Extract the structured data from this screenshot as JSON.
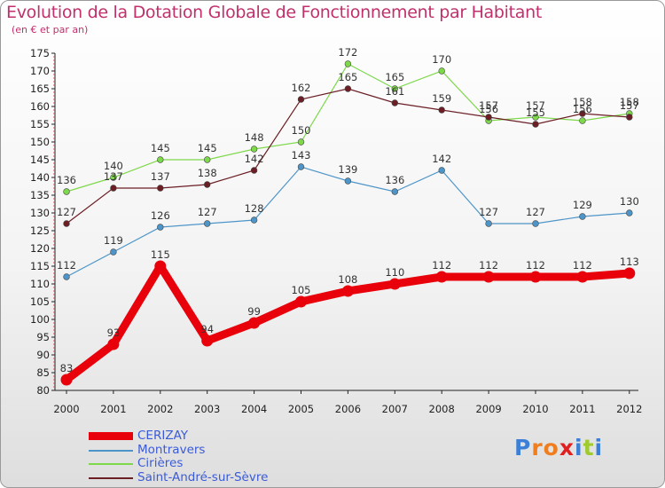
{
  "title": "Evolution de la Dotation Globale de Fonctionnement par Habitant",
  "subtitle": "(en € et par an)",
  "brand": {
    "letters": [
      "P",
      "r",
      "o",
      "x",
      "i",
      "t",
      "i"
    ],
    "colors": [
      "#3b7fd8",
      "#f07d1e",
      "#f07d1e",
      "#e02020",
      "#3b7fd8",
      "#9fcb2c",
      "#3b7fd8"
    ]
  },
  "chart_data": {
    "type": "line",
    "title": "Evolution de la Dotation Globale de Fonctionnement par Habitant",
    "ylabel": "(en € et par an)",
    "xlabel": "",
    "ylim": [
      80,
      175
    ],
    "yticks": [
      80,
      85,
      90,
      95,
      100,
      105,
      110,
      115,
      120,
      125,
      130,
      135,
      140,
      145,
      150,
      155,
      160,
      165,
      170,
      175
    ],
    "categories": [
      "2000",
      "2001",
      "2002",
      "2003",
      "2004",
      "2005",
      "2006",
      "2007",
      "2008",
      "2009",
      "2010",
      "2011",
      "2012"
    ],
    "series": [
      {
        "name": "CERIZAY",
        "color": "#e8000b",
        "highlight": true,
        "values": [
          83,
          93,
          115,
          94,
          99,
          105,
          108,
          110,
          112,
          112,
          112,
          112,
          113
        ]
      },
      {
        "name": "Montravers",
        "color": "#4d95c8",
        "values": [
          112,
          119,
          126,
          127,
          128,
          143,
          139,
          136,
          142,
          127,
          127,
          129,
          130
        ]
      },
      {
        "name": "Cirières",
        "color": "#7dd84a",
        "values": [
          136,
          140,
          145,
          145,
          148,
          150,
          172,
          165,
          170,
          156,
          157,
          156,
          158
        ]
      },
      {
        "name": "Saint-André-sur-Sèvre",
        "color": "#6b1e24",
        "values": [
          127,
          137,
          137,
          138,
          142,
          162,
          165,
          161,
          159,
          157,
          155,
          158,
          157
        ]
      }
    ],
    "grid": false,
    "legend_position": "bottom-left"
  }
}
